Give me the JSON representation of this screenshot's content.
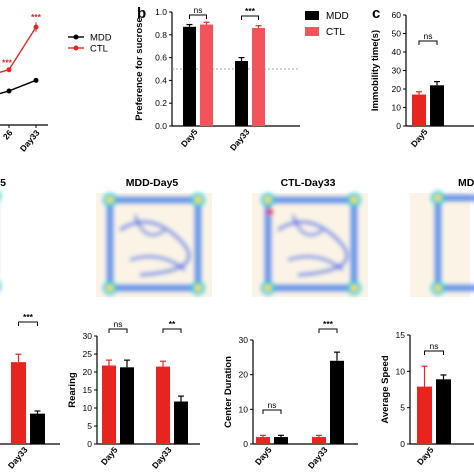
{
  "colors": {
    "mdd": "#000000",
    "ctl": "#e8241f",
    "ctl_bar": "#f2545a",
    "heat_bg": "#fbf4e6"
  },
  "panel_labels": {
    "b": "b",
    "c": "c"
  },
  "heatmaps": {
    "titles": [
      "5",
      "MDD-Day5",
      "CTL-Day33",
      "MD"
    ]
  },
  "chart_data": [
    {
      "id": "a_line",
      "type": "line",
      "categories": [
        "26",
        "Day33"
      ],
      "series": [
        {
          "name": "MDD",
          "values": [
            0.66,
            0.71
          ]
        },
        {
          "name": "CTL",
          "values": [
            0.76,
            0.96
          ]
        }
      ],
      "ylim": [
        0.5,
        1.05
      ],
      "legend": [
        "MDD",
        "CTL"
      ],
      "annotations": [
        "***",
        "***"
      ]
    },
    {
      "id": "b_sucrose",
      "type": "bar",
      "title": "",
      "ylabel": "Preference for sucrose",
      "categories": [
        "Day5",
        "Day33"
      ],
      "series": [
        {
          "name": "MDD",
          "values": [
            0.87,
            0.57
          ],
          "errors": [
            0.02,
            0.03
          ]
        },
        {
          "name": "CTL",
          "values": [
            0.89,
            0.86
          ],
          "errors": [
            0.02,
            0.02
          ]
        }
      ],
      "ylim": [
        0.0,
        1.0
      ],
      "yticks": [
        "0.0",
        "0.2",
        "0.4",
        "0.6",
        "0.8",
        "1.0"
      ],
      "reference_line": 0.5,
      "significance": [
        "ns",
        "***"
      ],
      "legend_position": "top-right"
    },
    {
      "id": "c_immobility",
      "type": "bar",
      "ylabel": "Immobility time(s)",
      "categories": [
        "Day5"
      ],
      "series": [
        {
          "name": "CTL",
          "values": [
            17
          ],
          "errors": [
            1.5
          ]
        },
        {
          "name": "MDD",
          "values": [
            22
          ],
          "errors": [
            2
          ]
        }
      ],
      "ylim": [
        0,
        60
      ],
      "yticks": [
        "0",
        "10",
        "20",
        "30",
        "40",
        "50",
        "60"
      ],
      "significance": [
        "ns"
      ]
    },
    {
      "id": "d1_partial",
      "type": "bar",
      "categories": [
        "Day33"
      ],
      "series": [
        {
          "name": "CTL",
          "values": [
            0.62
          ],
          "errors": [
            0.06
          ]
        },
        {
          "name": "MDD",
          "values": [
            0.23
          ],
          "errors": [
            0.02
          ]
        }
      ],
      "ylim": [
        0,
        1
      ],
      "significance": [
        "***"
      ]
    },
    {
      "id": "d2_rearing",
      "type": "bar",
      "ylabel": "Rearing",
      "categories": [
        "Day5",
        "Day33"
      ],
      "series": [
        {
          "name": "CTL",
          "values": [
            21.8,
            21.5
          ],
          "errors": [
            1.5,
            1.5
          ]
        },
        {
          "name": "MDD",
          "values": [
            21.3,
            11.8
          ],
          "errors": [
            2.0,
            1.5
          ]
        }
      ],
      "ylim": [
        0,
        30
      ],
      "yticks": [
        "0",
        "5",
        "10",
        "15",
        "20",
        "25",
        "30"
      ],
      "significance": [
        "ns",
        "**"
      ]
    },
    {
      "id": "d3_center",
      "type": "bar",
      "ylabel": "Center Duration",
      "categories": [
        "Day5",
        "Day33"
      ],
      "series": [
        {
          "name": "CTL",
          "values": [
            2.0,
            2.0
          ],
          "errors": [
            0.5,
            0.5
          ]
        },
        {
          "name": "MDD",
          "values": [
            2.0,
            24.0
          ],
          "errors": [
            0.5,
            2.5
          ]
        }
      ],
      "ylim": [
        0,
        30
      ],
      "yticks": [
        "0",
        "10",
        "20",
        "30"
      ],
      "significance": [
        "ns",
        "***"
      ]
    },
    {
      "id": "d4_speed",
      "type": "bar",
      "ylabel": "Average Speed",
      "categories": [
        "Day5"
      ],
      "series": [
        {
          "name": "CTL",
          "values": [
            7.9
          ],
          "errors": [
            2.8
          ]
        },
        {
          "name": "MDD",
          "values": [
            8.9
          ],
          "errors": [
            0.6
          ]
        }
      ],
      "ylim": [
        0,
        15
      ],
      "yticks": [
        "0",
        "5",
        "10",
        "15"
      ],
      "significance": [
        "ns"
      ]
    }
  ]
}
